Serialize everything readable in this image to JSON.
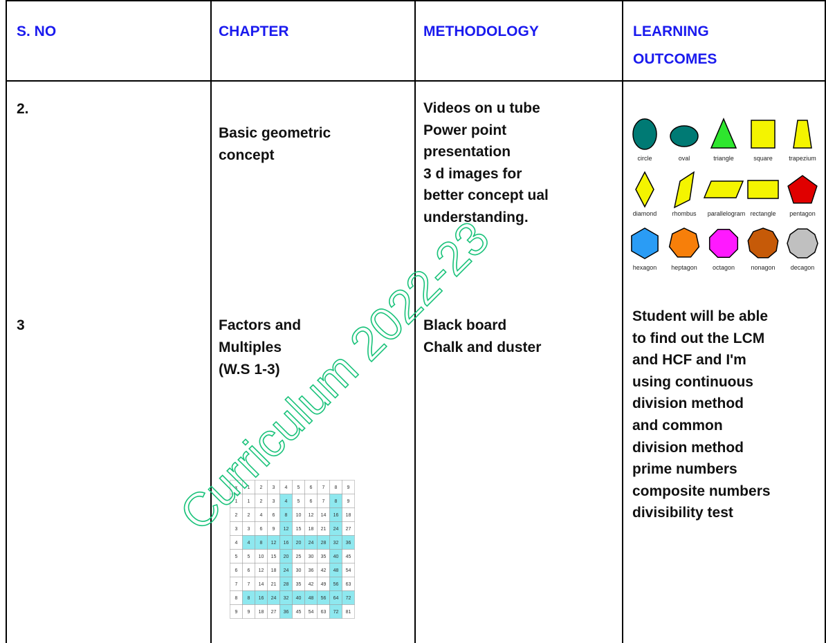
{
  "header": {
    "s_no": "S. NO",
    "chapter": "CHAPTER",
    "methodology": "METHODOLOGY",
    "learning_outcomes": [
      "LEARNING",
      "OUTCOMES"
    ]
  },
  "rows": [
    {
      "s_no": "2.",
      "chapter": [
        "Basic geometric",
        "concept"
      ],
      "methodology": [
        "Videos on u tube",
        "Power point",
        "presentation",
        "3 d images for",
        "better concept ual",
        "understanding."
      ],
      "shapes": [
        "circle",
        "oval",
        "triangle",
        "square",
        "trapezium",
        "diamond",
        "rhombus",
        "parallelogram",
        "rectangle",
        "pentagon",
        "hexagon",
        "heptagon",
        "octagon",
        "nonagon",
        "decagon"
      ]
    },
    {
      "s_no": "3",
      "chapter": [
        "Factors and",
        "Multiples",
        "(W.S 1-3)"
      ],
      "methodology": [
        "Black board",
        "Chalk and duster"
      ],
      "learning_outcomes": [
        "Student will be able",
        "to find out the LCM",
        "and HCF and I'm",
        "using continuous",
        "division method",
        "and common",
        "division method",
        "prime numbers",
        "composite numbers",
        "divisibility test"
      ],
      "multiplication_table": {
        "header": [
          "x",
          1,
          2,
          3,
          4,
          5,
          6,
          7,
          8,
          9
        ],
        "rows": [
          [
            1,
            1,
            2,
            3,
            4,
            5,
            6,
            7,
            8,
            9
          ],
          [
            2,
            2,
            4,
            6,
            8,
            10,
            12,
            14,
            16,
            18
          ],
          [
            3,
            3,
            6,
            9,
            12,
            15,
            18,
            21,
            24,
            27
          ],
          [
            4,
            4,
            8,
            12,
            16,
            20,
            24,
            28,
            32,
            36
          ],
          [
            5,
            5,
            10,
            15,
            20,
            25,
            30,
            35,
            40,
            45
          ],
          [
            6,
            6,
            12,
            18,
            24,
            30,
            36,
            42,
            48,
            54
          ],
          [
            7,
            7,
            14,
            21,
            28,
            35,
            42,
            49,
            56,
            63
          ],
          [
            8,
            8,
            16,
            24,
            32,
            40,
            48,
            56,
            64,
            72
          ],
          [
            9,
            9,
            18,
            27,
            36,
            45,
            54,
            63,
            72,
            81
          ]
        ]
      }
    }
  ],
  "watermark": "Curriculum 2022-23"
}
